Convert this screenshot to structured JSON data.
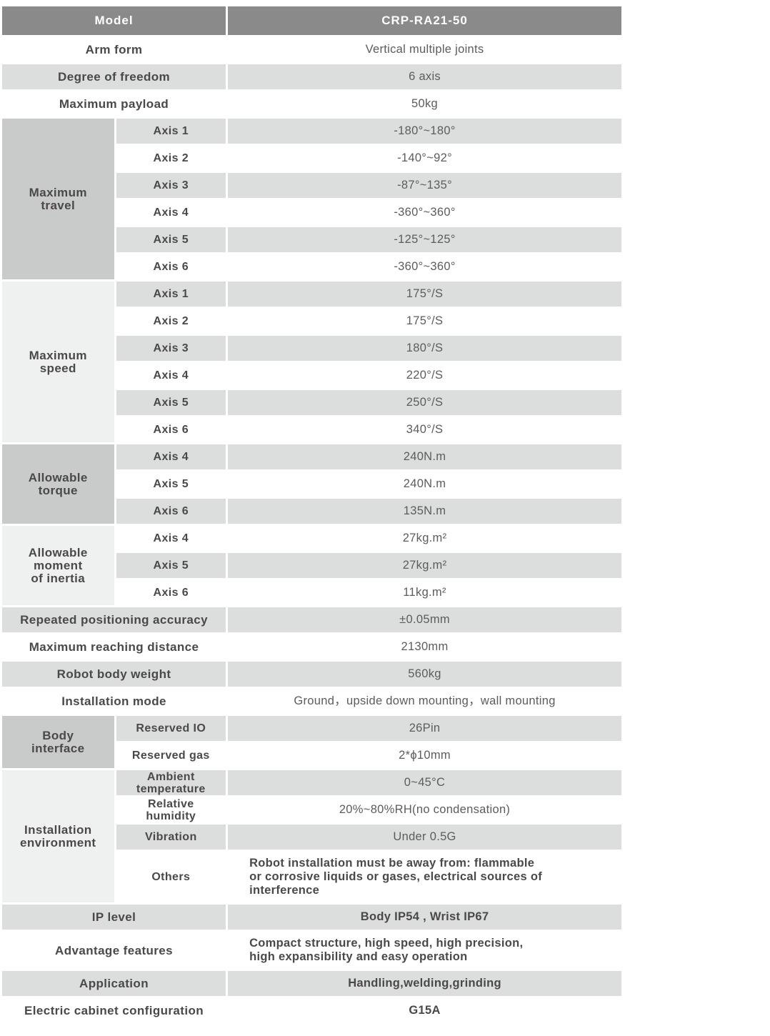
{
  "colors": {
    "header_bg": "#8a8a8a",
    "header_text": "#ffffff",
    "stripe_gray": "#dcdedd",
    "group_cell_dark": "#c9caca",
    "group_cell_light": "#eff0f0",
    "label_text": "#4b4948",
    "value_text": "#5b5c5e"
  },
  "header": {
    "label": "Model",
    "value": "CRP-RA21-50"
  },
  "rows": [
    {
      "kind": "simple",
      "label": "Arm form",
      "value": "Vertical multiple joints"
    },
    {
      "kind": "simple",
      "label": "Degree of freedom",
      "value": "6 axis"
    },
    {
      "kind": "simple",
      "label": "Maximum payload",
      "value": "50kg"
    },
    {
      "kind": "group",
      "label": "Maximum\ntravel",
      "items": [
        {
          "label": "Axis 1",
          "value": "-180°~180°"
        },
        {
          "label": "Axis 2",
          "value": "-140°~92°"
        },
        {
          "label": "Axis 3",
          "value": "-87°~135°"
        },
        {
          "label": "Axis 4",
          "value": "-360°~360°"
        },
        {
          "label": "Axis 5",
          "value": "-125°~125°"
        },
        {
          "label": "Axis 6",
          "value": "-360°~360°"
        }
      ]
    },
    {
      "kind": "group",
      "label": "Maximum\nspeed",
      "items": [
        {
          "label": "Axis 1",
          "value": "175°/S"
        },
        {
          "label": "Axis 2",
          "value": "175°/S"
        },
        {
          "label": "Axis 3",
          "value": "180°/S"
        },
        {
          "label": "Axis 4",
          "value": "220°/S"
        },
        {
          "label": "Axis 5",
          "value": "250°/S"
        },
        {
          "label": "Axis 6",
          "value": "340°/S"
        }
      ]
    },
    {
      "kind": "group",
      "label": "Allowable\ntorque",
      "items": [
        {
          "label": "Axis 4",
          "value": "240N.m"
        },
        {
          "label": "Axis 5",
          "value": "240N.m"
        },
        {
          "label": "Axis 6",
          "value": "135N.m"
        }
      ]
    },
    {
      "kind": "group",
      "label": "Allowable\nmoment\nof inertia",
      "items": [
        {
          "label": "Axis 4",
          "value": "27kg.m²"
        },
        {
          "label": "Axis 5",
          "value": "27kg.m²"
        },
        {
          "label": "Axis 6",
          "value": "11kg.m²"
        }
      ]
    },
    {
      "kind": "simple",
      "label": "Repeated positioning accuracy",
      "value": "±0.05mm"
    },
    {
      "kind": "simple",
      "label": "Maximum reaching distance",
      "value": "2130mm"
    },
    {
      "kind": "simple",
      "label": "Robot body weight",
      "value": "560kg"
    },
    {
      "kind": "simple",
      "label": "Installation mode",
      "value": "Ground，upside down mounting，wall mounting"
    },
    {
      "kind": "group",
      "label": "Body\ninterface",
      "items": [
        {
          "label": "Reserved IO",
          "value": "26Pin"
        },
        {
          "label": "Reserved gas",
          "value": "2*ϕ10mm"
        }
      ]
    },
    {
      "kind": "group",
      "label": "Installation\nenvironment",
      "items": [
        {
          "label": "Ambient\ntemperature",
          "value": "0~45°C"
        },
        {
          "label": "Relative\nhumidity",
          "value": "20%~80%RH(no condensation)"
        },
        {
          "label": "Vibration",
          "value": "Under 0.5G"
        },
        {
          "label": "Others",
          "value": "Robot installation must be away from: flammable\nor corrosive liquids or gases, electrical sources of\ninterference",
          "emphasis": true,
          "align": "left",
          "tall": true
        }
      ]
    },
    {
      "kind": "simple",
      "label": "IP level",
      "value": "Body IP54 , Wrist IP67",
      "emphasis": true
    },
    {
      "kind": "simple",
      "label": "Advantage features",
      "value": "Compact structure, high speed, high precision,\nhigh expansibility and easy operation",
      "emphasis": true,
      "align": "left",
      "tall": true
    },
    {
      "kind": "simple",
      "label": "Application",
      "value": "Handling,welding,grinding",
      "emphasis": true
    },
    {
      "kind": "simple",
      "label": "Electric cabinet configuration",
      "value": "G15A",
      "emphasis": true
    }
  ]
}
